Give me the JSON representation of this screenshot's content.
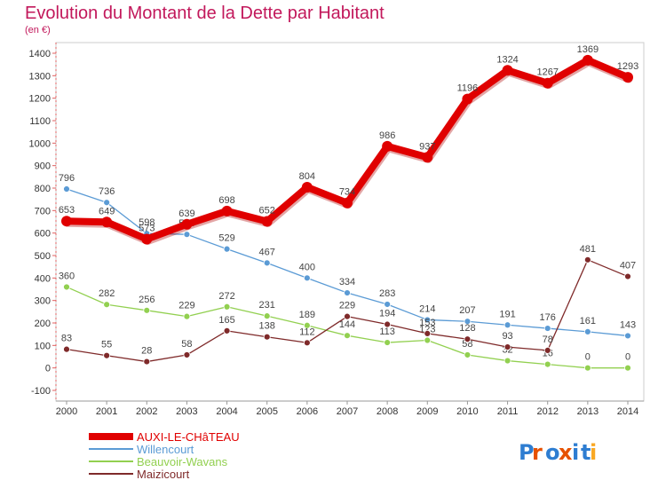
{
  "chart_data": {
    "type": "line",
    "title": "Evolution du Montant de la Dette par Habitant",
    "unit": "(en €)",
    "x": [
      "2000",
      "2001",
      "2002",
      "2003",
      "2004",
      "2005",
      "2006",
      "2007",
      "2008",
      "2009",
      "2010",
      "2011",
      "2012",
      "2013",
      "2014"
    ],
    "ylim": [
      -100,
      1400
    ],
    "yticks": [
      -100,
      0,
      100,
      200,
      300,
      400,
      500,
      600,
      700,
      800,
      900,
      1000,
      1100,
      1200,
      1300,
      1400
    ],
    "grid": false,
    "legend_position": "bottom-left",
    "series": [
      {
        "name": "AUXI-LE-CHâTEAU",
        "color": "#e00000",
        "values": [
          653,
          649,
          573,
          639,
          698,
          652,
          804,
          734,
          986,
          937,
          1196,
          1324,
          1267,
          1369,
          1293
        ]
      },
      {
        "name": "Willencourt",
        "color": "#5b9bd5",
        "values": [
          796,
          736,
          598,
          594,
          529,
          467,
          400,
          334,
          283,
          214,
          207,
          191,
          176,
          161,
          143
        ]
      },
      {
        "name": "Beauvoir-Wavans",
        "color": "#92d050",
        "values": [
          360,
          282,
          256,
          229,
          272,
          231,
          189,
          144,
          113,
          123,
          58,
          32,
          16,
          0,
          0
        ]
      },
      {
        "name": "Maizicourt",
        "color": "#7f2a2a",
        "values": [
          83,
          55,
          28,
          58,
          165,
          138,
          112,
          229,
          194,
          153,
          128,
          93,
          78,
          481,
          407
        ]
      }
    ]
  },
  "logo": {
    "text": "Proxiti"
  }
}
